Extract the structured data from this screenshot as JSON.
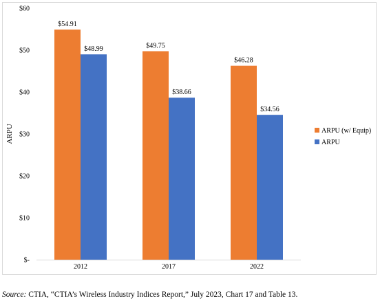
{
  "chart_data": {
    "type": "bar",
    "title": "",
    "xlabel": "",
    "ylabel": "ARPU",
    "ylim": [
      0,
      60
    ],
    "yticks": [
      "$-",
      "$10",
      "$20",
      "$30",
      "$40",
      "$50",
      "$60"
    ],
    "categories": [
      "2012",
      "2017",
      "2022"
    ],
    "series": [
      {
        "name": "ARPU (w/ Equip)",
        "color": "#ed7d31",
        "values": [
          54.91,
          49.75,
          46.28
        ],
        "labels": [
          "$54.91",
          "$49.75",
          "$46.28"
        ]
      },
      {
        "name": "ARPU",
        "color": "#4472c4",
        "values": [
          48.99,
          38.66,
          34.56
        ],
        "labels": [
          "$48.99",
          "$38.66",
          "$34.56"
        ]
      }
    ],
    "legend": "right",
    "grid": false
  },
  "source": {
    "label": "Source:",
    "text": " CTIA, “CTIA’s Wireless Industry Indices Report,” July 2023, Chart 17 and Table 13."
  }
}
